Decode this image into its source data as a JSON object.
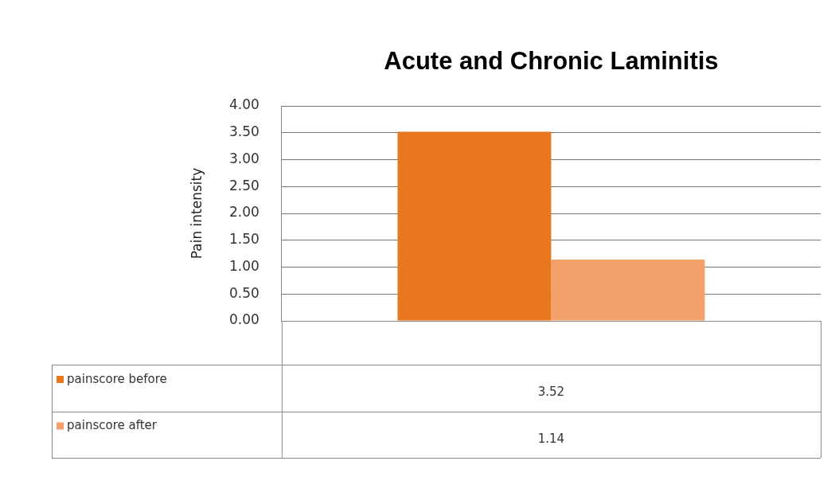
{
  "chart_data": {
    "type": "bar",
    "title": "Acute and Chronic Laminitis",
    "ylabel": "Pain intensity",
    "categories": [
      null
    ],
    "series": [
      {
        "name": "painscore before",
        "color": "#e8771f",
        "values": [
          3.52
        ]
      },
      {
        "name": "painscore after",
        "color": "#f3a06a",
        "values": [
          1.14
        ]
      }
    ],
    "ylim": [
      0,
      4
    ],
    "yticks": [
      {
        "value": 0,
        "label": "0.00"
      },
      {
        "value": 0.5,
        "label": "0.50"
      },
      {
        "value": 1,
        "label": "1.00"
      },
      {
        "value": 1.5,
        "label": "1.50"
      },
      {
        "value": 2,
        "label": "2.00"
      },
      {
        "value": 2.5,
        "label": "2.50"
      },
      {
        "value": 3,
        "label": "3.00"
      },
      {
        "value": 3.5,
        "label": "3.50"
      },
      {
        "value": 4,
        "label": "4.00"
      }
    ],
    "grid": "y",
    "legend": "bottom",
    "annotations": [
      "3.52",
      "1.14"
    ]
  }
}
